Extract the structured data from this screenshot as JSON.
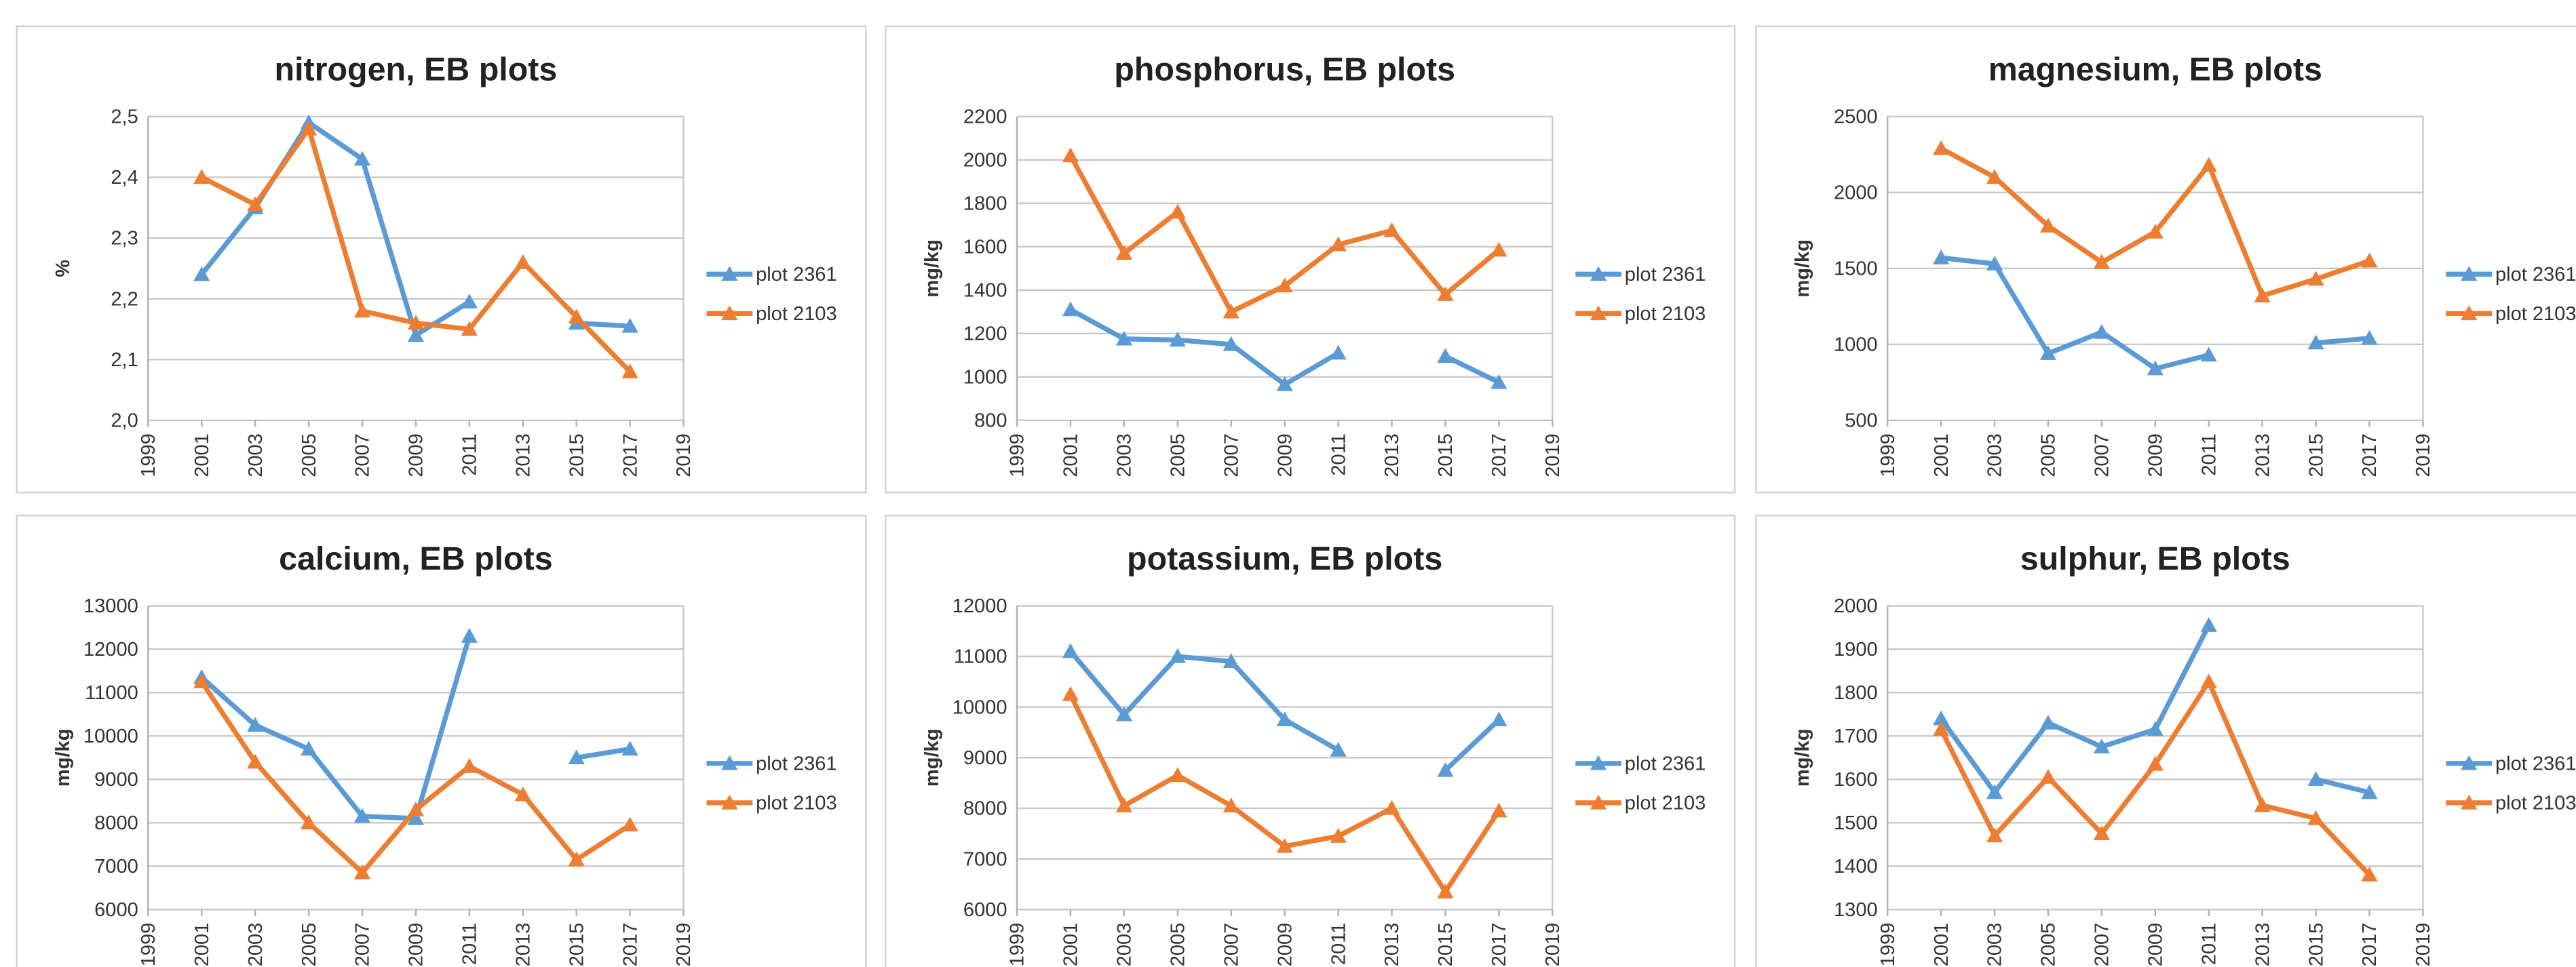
{
  "chart_data": [
    {
      "type": "line",
      "title": "nitrogen, EB plots",
      "ylabel": "%",
      "x": [
        2001,
        2003,
        2005,
        2007,
        2009,
        2011,
        2013,
        2015,
        2017
      ],
      "xlim": [
        1999,
        2019
      ],
      "xticks": [
        1999,
        2001,
        2003,
        2005,
        2007,
        2009,
        2011,
        2013,
        2015,
        2017,
        2019
      ],
      "ylim": [
        2.0,
        2.5
      ],
      "yticks": [
        {
          "value": 2.0,
          "label": "2,0"
        },
        {
          "value": 2.1,
          "label": "2,1"
        },
        {
          "value": 2.2,
          "label": "2,2"
        },
        {
          "value": 2.3,
          "label": "2,3"
        },
        {
          "value": 2.4,
          "label": "2,4"
        },
        {
          "value": 2.5,
          "label": "2,5"
        }
      ],
      "grid": true,
      "legend": "right",
      "series": [
        {
          "name": "plot 2361",
          "color": "#5b9bd5",
          "values": [
            2.24,
            2.35,
            2.49,
            2.43,
            2.14,
            2.195,
            null,
            2.16,
            2.155
          ]
        },
        {
          "name": "plot 2103",
          "color": "#ed7d31",
          "values": [
            2.4,
            2.355,
            2.48,
            2.18,
            2.16,
            2.15,
            2.26,
            2.17,
            2.08
          ]
        }
      ]
    },
    {
      "type": "line",
      "title": "phosphorus, EB plots",
      "ylabel": "mg/kg",
      "x": [
        2001,
        2003,
        2005,
        2007,
        2009,
        2011,
        2013,
        2015,
        2017
      ],
      "xlim": [
        1999,
        2019
      ],
      "xticks": [
        1999,
        2001,
        2003,
        2005,
        2007,
        2009,
        2011,
        2013,
        2015,
        2017,
        2019
      ],
      "ylim": [
        800,
        2200
      ],
      "yticks": [
        800,
        1000,
        1200,
        1400,
        1600,
        1800,
        2000,
        2200
      ],
      "grid": true,
      "legend": "right",
      "series": [
        {
          "name": "plot 2361",
          "color": "#5b9bd5",
          "values": [
            1310,
            1175,
            1170,
            1150,
            965,
            1110,
            null,
            1095,
            975
          ]
        },
        {
          "name": "plot 2103",
          "color": "#ed7d31",
          "values": [
            2020,
            1570,
            1760,
            1300,
            1420,
            1610,
            1675,
            1380,
            1585
          ]
        }
      ]
    },
    {
      "type": "line",
      "title": "magnesium, EB plots",
      "ylabel": "mg/kg",
      "x": [
        2001,
        2003,
        2005,
        2007,
        2009,
        2011,
        2013,
        2015,
        2017
      ],
      "xlim": [
        1999,
        2019
      ],
      "xticks": [
        1999,
        2001,
        2003,
        2005,
        2007,
        2009,
        2011,
        2013,
        2015,
        2017,
        2019
      ],
      "ylim": [
        500,
        2500
      ],
      "yticks": [
        500,
        1000,
        1500,
        2000,
        2500
      ],
      "grid": true,
      "legend": "right",
      "series": [
        {
          "name": "plot 2361",
          "color": "#5b9bd5",
          "values": [
            1570,
            1530,
            940,
            1080,
            840,
            930,
            null,
            1010,
            1040
          ]
        },
        {
          "name": "plot 2103",
          "color": "#ed7d31",
          "values": [
            2290,
            2100,
            1780,
            1540,
            1740,
            2180,
            1320,
            1430,
            1550
          ]
        }
      ]
    },
    {
      "type": "line",
      "title": "calcium, EB plots",
      "ylabel": "mg/kg",
      "x": [
        2001,
        2003,
        2005,
        2007,
        2009,
        2011,
        2013,
        2015,
        2017
      ],
      "xlim": [
        1999,
        2019
      ],
      "xticks": [
        1999,
        2001,
        2003,
        2005,
        2007,
        2009,
        2011,
        2013,
        2015,
        2017,
        2019
      ],
      "ylim": [
        6000,
        13000
      ],
      "yticks": [
        6000,
        7000,
        8000,
        9000,
        10000,
        11000,
        12000,
        13000
      ],
      "grid": true,
      "legend": "right",
      "series": [
        {
          "name": "plot 2361",
          "color": "#5b9bd5",
          "values": [
            11350,
            10250,
            9700,
            8150,
            8100,
            12300,
            null,
            9500,
            9700
          ]
        },
        {
          "name": "plot 2103",
          "color": "#ed7d31",
          "values": [
            11250,
            9400,
            8000,
            6850,
            8300,
            9300,
            8650,
            7150,
            7950
          ]
        }
      ]
    },
    {
      "type": "line",
      "title": "potassium, EB plots",
      "ylabel": "mg/kg",
      "x": [
        2001,
        2003,
        2005,
        2007,
        2009,
        2011,
        2013,
        2015,
        2017
      ],
      "xlim": [
        1999,
        2019
      ],
      "xticks": [
        1999,
        2001,
        2003,
        2005,
        2007,
        2009,
        2011,
        2013,
        2015,
        2017,
        2019
      ],
      "ylim": [
        6000,
        12000
      ],
      "yticks": [
        6000,
        7000,
        8000,
        9000,
        10000,
        11000,
        12000
      ],
      "grid": true,
      "legend": "right",
      "series": [
        {
          "name": "plot 2361",
          "color": "#5b9bd5",
          "values": [
            11100,
            9850,
            11000,
            10900,
            9750,
            9150,
            null,
            8750,
            9750
          ]
        },
        {
          "name": "plot 2103",
          "color": "#ed7d31",
          "values": [
            10250,
            8050,
            8650,
            8050,
            7250,
            7450,
            8000,
            6350,
            7950
          ]
        }
      ]
    },
    {
      "type": "line",
      "title": "sulphur, EB plots",
      "ylabel": "mg/kg",
      "x": [
        2001,
        2003,
        2005,
        2007,
        2009,
        2011,
        2013,
        2015,
        2017
      ],
      "xlim": [
        1999,
        2019
      ],
      "xticks": [
        1999,
        2001,
        2003,
        2005,
        2007,
        2009,
        2011,
        2013,
        2015,
        2017,
        2019
      ],
      "ylim": [
        1300,
        2000
      ],
      "yticks": [
        1300,
        1400,
        1500,
        1600,
        1700,
        1800,
        1900,
        2000
      ],
      "grid": true,
      "legend": "right",
      "series": [
        {
          "name": "plot 2361",
          "color": "#5b9bd5",
          "values": [
            1740,
            1570,
            1730,
            1675,
            1715,
            1955,
            null,
            1600,
            1570
          ]
        },
        {
          "name": "plot 2103",
          "color": "#ed7d31",
          "values": [
            1715,
            1470,
            1605,
            1475,
            1635,
            1825,
            1540,
            1510,
            1380
          ]
        }
      ]
    }
  ]
}
